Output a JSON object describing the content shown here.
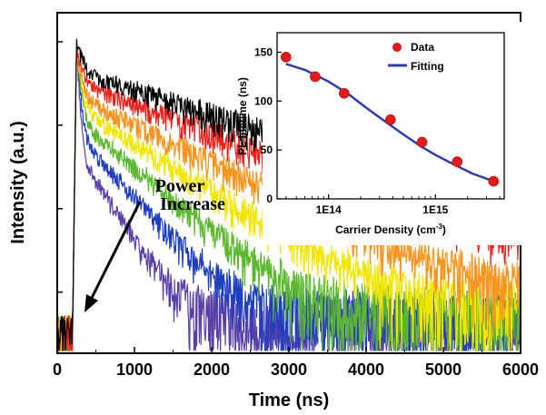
{
  "colors": {
    "axis": "#000000",
    "background": "#ffffff",
    "black_curve": "#000000",
    "red_curve": "#e8231d",
    "orange_curve": "#f7941d",
    "yellow_curve": "#f2e600",
    "green_curve": "#5cb82e",
    "blue_curve": "#1f3fbf",
    "violet_curve": "#5a3fa8",
    "marker": "#e01b1b",
    "fit_line": "#2b3ea8"
  },
  "chart_data": [
    {
      "type": "line",
      "title": "",
      "xlabel": "Time (ns)",
      "ylabel": "Intensity (a.u.)",
      "xlim": [
        0,
        6000
      ],
      "x_ticks": [
        "0",
        "1000",
        "2000",
        "3000",
        "4000",
        "5000",
        "6000"
      ],
      "y_scale": "log",
      "y_tick_labels_shown": false,
      "y_range_decades": [
        -3.7,
        0
      ],
      "annotation": {
        "lines": [
          "Power",
          "Increase"
        ],
        "arrow": "down-left"
      },
      "rise_time_ns": 200,
      "peak_time_ns": 250,
      "series_order_note": "power increase",
      "series": [
        {
          "color": "#000000",
          "fast_amp": 0.55,
          "fast_tau_ns": 70,
          "slow_amp": 0.45,
          "slow_tau_ns": 1400,
          "noise_floor": 0.0015
        },
        {
          "color": "#e8231d",
          "fast_amp": 0.6,
          "fast_tau_ns": 60,
          "slow_amp": 0.32,
          "slow_tau_ns": 1250,
          "noise_floor": 0.0015
        },
        {
          "color": "#f7941d",
          "fast_amp": 0.68,
          "fast_tau_ns": 50,
          "slow_amp": 0.22,
          "slow_tau_ns": 950,
          "noise_floor": 0.0012
        },
        {
          "color": "#f2e600",
          "fast_amp": 0.74,
          "fast_tau_ns": 45,
          "slow_amp": 0.16,
          "slow_tau_ns": 750,
          "noise_floor": 0.001
        },
        {
          "color": "#5cb82e",
          "fast_amp": 0.8,
          "fast_tau_ns": 38,
          "slow_amp": 0.12,
          "slow_tau_ns": 550,
          "noise_floor": 0.0009
        },
        {
          "color": "#1f3fbf",
          "fast_amp": 0.86,
          "fast_tau_ns": 32,
          "slow_amp": 0.08,
          "slow_tau_ns": 420,
          "noise_floor": 0.0008
        },
        {
          "color": "#5a3fa8",
          "fast_amp": 0.9,
          "fast_tau_ns": 25,
          "slow_amp": 0.05,
          "slow_tau_ns": 300,
          "noise_floor": 0.0007
        }
      ]
    },
    {
      "type": "scatter",
      "title": "",
      "xlabel": "Carrier Density (cm",
      "xlabel_sup": "-3",
      "xlabel_tail": ")",
      "ylabel": "PL lifetime (ns)",
      "x_scale": "log",
      "xlim": [
        33000000000000.0,
        4400000000000000.0
      ],
      "ylim": [
        0,
        170
      ],
      "x_ticks": [
        {
          "value": 100000000000000.0,
          "label": "1E14"
        },
        {
          "value": 1000000000000000.0,
          "label": "1E15"
        }
      ],
      "y_ticks": [
        0,
        50,
        100,
        150
      ],
      "legend": {
        "position": "top-right",
        "entries": [
          "Data",
          "Fitting"
        ]
      },
      "series": [
        {
          "name": "Data",
          "kind": "markers",
          "x": [
            40000000000000.0,
            75000000000000.0,
            140000000000000.0,
            380000000000000.0,
            750000000000000.0,
            1600000000000000.0,
            3500000000000000.0
          ],
          "y": [
            145,
            125,
            108,
            81,
            58,
            38,
            18
          ]
        },
        {
          "name": "Fitting",
          "kind": "line",
          "x": [
            40000000000000.0,
            60000000000000.0,
            100000000000000.0,
            150000000000000.0,
            220000000000000.0,
            330000000000000.0,
            500000000000000.0,
            750000000000000.0,
            1000000000000000.0,
            1500000000000000.0,
            2200000000000000.0,
            3500000000000000.0
          ],
          "y": [
            138,
            132,
            120,
            108,
            94,
            80,
            66,
            53,
            45,
            35,
            26,
            18
          ]
        }
      ]
    }
  ]
}
